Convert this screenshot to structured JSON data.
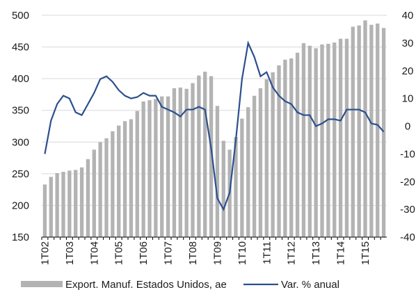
{
  "chart_data": {
    "type": "bar-line",
    "categories": [
      "1T02",
      null,
      null,
      null,
      "1T03",
      null,
      null,
      null,
      "1T04",
      null,
      null,
      null,
      "1T05",
      null,
      null,
      null,
      "1T06",
      null,
      null,
      null,
      "1T07",
      null,
      null,
      null,
      "1T08",
      null,
      null,
      null,
      "1T09",
      null,
      null,
      null,
      "1T10",
      null,
      null,
      null,
      "1T11",
      null,
      null,
      null,
      "1T12",
      null,
      null,
      null,
      "1T13",
      null,
      null,
      null,
      "1T14",
      null,
      null,
      null,
      "1T15",
      null,
      null,
      null
    ],
    "series": [
      {
        "name": "Export. Manuf. Estados Unidos, ae",
        "type": "bar",
        "color": "#b3b3b3",
        "axis": "y",
        "values": [
          233,
          245,
          251,
          253,
          255,
          256,
          260,
          273,
          288,
          300,
          306,
          317,
          326,
          333,
          336,
          349,
          364,
          366,
          368,
          372,
          372,
          385,
          386,
          384,
          393,
          405,
          411,
          404,
          357,
          302,
          288,
          308,
          337,
          355,
          373,
          385,
          399,
          410,
          421,
          430,
          432,
          441,
          456,
          452,
          448,
          454,
          455,
          457,
          463,
          463,
          482,
          484,
          492,
          485,
          487,
          480
        ]
      },
      {
        "name": "Var. % anual",
        "type": "line",
        "color": "#2b4f8e",
        "axis": "y2",
        "values": [
          -10,
          2,
          8,
          11,
          10,
          5,
          4,
          8,
          12,
          17,
          18,
          16,
          13,
          11,
          10,
          10.5,
          12,
          11,
          11,
          7,
          6,
          5,
          3.5,
          6,
          6,
          7,
          6,
          -8,
          -26,
          -30,
          -24,
          -5,
          17,
          30,
          25,
          18,
          19.5,
          14,
          11,
          9,
          8,
          5,
          4,
          4,
          0,
          1,
          2.5,
          2.5,
          2,
          6,
          6,
          6,
          5,
          1,
          0.5,
          -2
        ]
      }
    ],
    "ylim": [
      150,
      500
    ],
    "yticks": [
      150,
      200,
      250,
      300,
      350,
      400,
      450,
      500
    ],
    "y2lim": [
      -40,
      40
    ],
    "y2ticks": [
      -40,
      -30,
      -20,
      -10,
      0,
      10,
      20,
      30,
      40
    ],
    "grid": true,
    "legend": "bottom"
  }
}
